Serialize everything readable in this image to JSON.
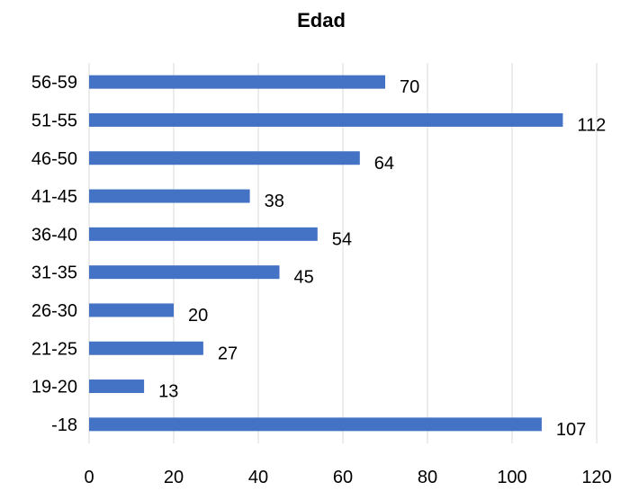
{
  "chart_data": {
    "type": "bar",
    "orientation": "horizontal",
    "title": "Edad",
    "categories": [
      "-18",
      "19-20",
      "21-25",
      "26-30",
      "31-35",
      "36-40",
      "41-45",
      "46-50",
      "51-55",
      "56-59"
    ],
    "values": [
      107,
      13,
      27,
      20,
      45,
      54,
      38,
      64,
      112,
      70
    ],
    "xlabel": "",
    "ylabel": "",
    "xlim": [
      0,
      120
    ],
    "xticks": [
      0,
      20,
      40,
      60,
      80,
      100,
      120
    ],
    "grid": true,
    "data_labels": true,
    "bar_color": "#4472c4"
  }
}
